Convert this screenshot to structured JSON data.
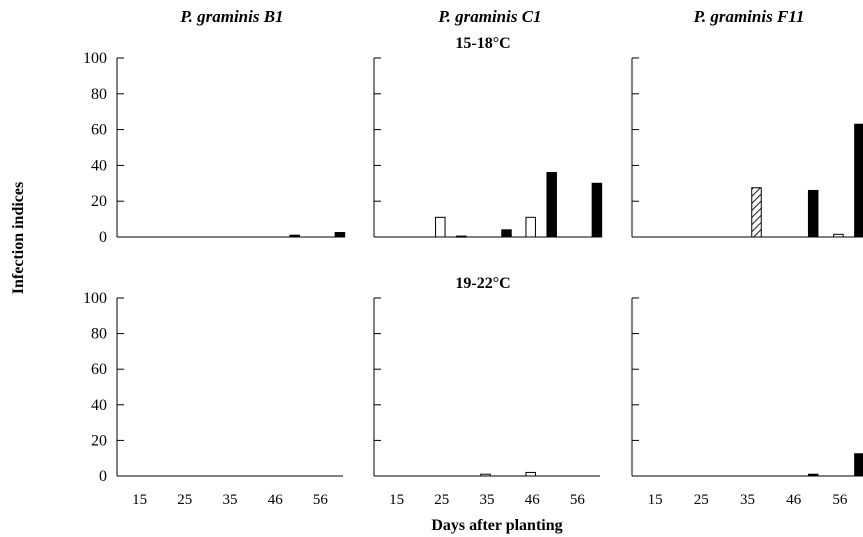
{
  "chart_data": {
    "type": "bar",
    "title": "",
    "xlabel": "Days after planting",
    "ylabel": "Infection indices",
    "ylim": [
      0,
      100
    ],
    "yticks": [
      0,
      20,
      40,
      60,
      80,
      100
    ],
    "categories": [
      "15",
      "25",
      "35",
      "46",
      "56"
    ],
    "columns": [
      "P. graminis B1",
      "P. graminis C1",
      "P. graminis F11"
    ],
    "rows": [
      "15-18°C",
      "19-22°C"
    ],
    "series": [
      {
        "style": "open"
      },
      {
        "style": "hatched"
      },
      {
        "style": "solid"
      }
    ],
    "panels": [
      {
        "column": 0,
        "row": 0,
        "bars": [
          [
            0,
            0,
            0
          ],
          [
            0,
            0,
            0
          ],
          [
            0,
            0,
            0
          ],
          [
            0,
            0,
            1
          ],
          [
            0,
            0,
            2.5
          ]
        ]
      },
      {
        "column": 1,
        "row": 0,
        "bars": [
          [
            0,
            0,
            0
          ],
          [
            11,
            0,
            0.5
          ],
          [
            0,
            0,
            4
          ],
          [
            11,
            0,
            36
          ],
          [
            0,
            0,
            30
          ]
        ]
      },
      {
        "column": 2,
        "row": 0,
        "bars": [
          [
            0,
            0,
            0
          ],
          [
            0,
            0,
            0
          ],
          [
            0,
            27.5,
            0
          ],
          [
            0,
            0,
            26
          ],
          [
            1.5,
            0,
            63
          ]
        ]
      },
      {
        "column": 0,
        "row": 1,
        "bars": [
          [
            0,
            0,
            0
          ],
          [
            0,
            0,
            0
          ],
          [
            0,
            0,
            0
          ],
          [
            0,
            0,
            0
          ],
          [
            0,
            0,
            0
          ]
        ]
      },
      {
        "column": 1,
        "row": 1,
        "bars": [
          [
            0,
            0,
            0
          ],
          [
            0,
            0,
            0
          ],
          [
            1,
            0,
            0
          ],
          [
            2,
            0,
            0
          ],
          [
            0,
            0,
            0
          ]
        ]
      },
      {
        "column": 2,
        "row": 1,
        "bars": [
          [
            0,
            0,
            0
          ],
          [
            0,
            0,
            0
          ],
          [
            0,
            0,
            0
          ],
          [
            0,
            0,
            1
          ],
          [
            0,
            0,
            12.5
          ]
        ]
      }
    ]
  }
}
